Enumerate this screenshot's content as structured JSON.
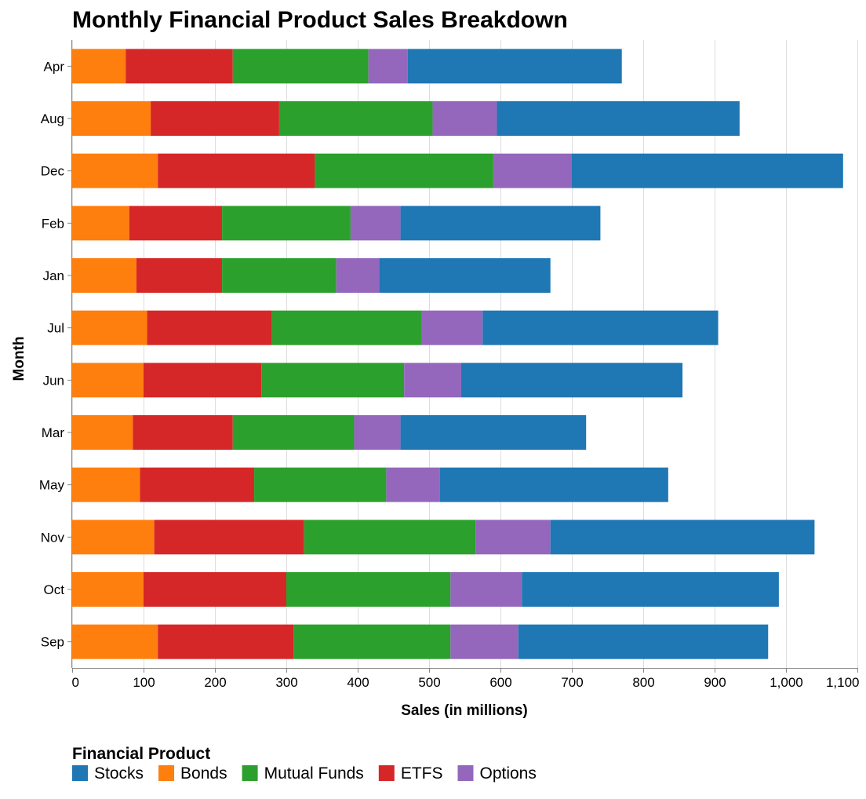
{
  "chart_data": {
    "type": "bar",
    "orientation": "horizontal",
    "stacked": true,
    "title": "Monthly Financial Product Sales Breakdown",
    "xlabel": "Sales (in millions)",
    "ylabel": "Month",
    "xlim": [
      0,
      1100
    ],
    "x_ticks": [
      0,
      100,
      200,
      300,
      400,
      500,
      600,
      700,
      800,
      900,
      1000,
      1100
    ],
    "x_tick_labels": [
      "0",
      "100",
      "200",
      "300",
      "400",
      "500",
      "600",
      "700",
      "800",
      "900",
      "1,000",
      "1,100"
    ],
    "categories": [
      "Apr",
      "Aug",
      "Dec",
      "Feb",
      "Jan",
      "Jul",
      "Jun",
      "Mar",
      "May",
      "Nov",
      "Oct",
      "Sep"
    ],
    "stack_order": [
      "Bonds",
      "ETFS",
      "Mutual Funds",
      "Options",
      "Stocks"
    ],
    "series": [
      {
        "name": "Stocks",
        "color": "#1f77b4",
        "values": [
          300,
          340,
          380,
          280,
          240,
          330,
          310,
          260,
          320,
          370,
          360,
          350
        ]
      },
      {
        "name": "Bonds",
        "color": "#ff7f0e",
        "values": [
          75,
          110,
          120,
          80,
          90,
          105,
          100,
          85,
          95,
          115,
          100,
          120
        ]
      },
      {
        "name": "Mutual Funds",
        "color": "#2ca02c",
        "values": [
          190,
          215,
          250,
          180,
          160,
          210,
          200,
          170,
          185,
          240,
          230,
          220
        ]
      },
      {
        "name": "ETFS",
        "color": "#d62728",
        "values": [
          150,
          180,
          220,
          130,
          120,
          175,
          165,
          140,
          160,
          210,
          200,
          190
        ]
      },
      {
        "name": "Options",
        "color": "#9467bd",
        "values": [
          55,
          90,
          110,
          70,
          60,
          85,
          80,
          65,
          75,
          105,
          100,
          95
        ]
      }
    ],
    "grid": true,
    "legend": {
      "title": "Financial Product",
      "position": "bottom",
      "entries": [
        "Stocks",
        "Bonds",
        "Mutual Funds",
        "ETFS",
        "Options"
      ]
    }
  }
}
